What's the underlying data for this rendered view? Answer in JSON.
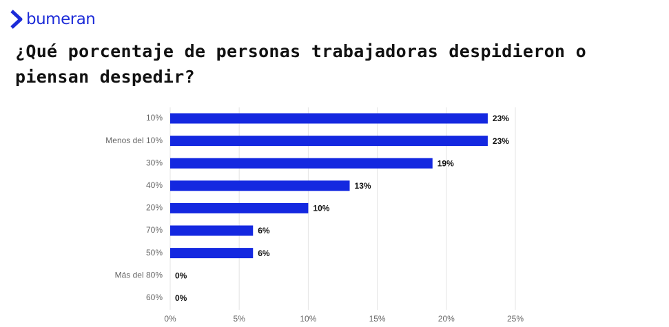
{
  "brand": "bumeran",
  "chart_data": {
    "type": "hbar",
    "title": "¿Qué porcentaje de personas trabajadoras despidieron o piensan despedir?",
    "categories": [
      "10%",
      "Menos del 10%",
      "30%",
      "40%",
      "20%",
      "70%",
      "50%",
      "Más del 80%",
      "60%"
    ],
    "values": [
      23,
      23,
      19,
      13,
      10,
      6,
      6,
      0,
      0
    ],
    "value_labels": [
      "23%",
      "23%",
      "19%",
      "13%",
      "10%",
      "6%",
      "6%",
      "0%",
      "0%"
    ],
    "color": "#1428e0",
    "xlim": [
      0,
      25
    ],
    "xticks": [
      {
        "value": 0,
        "label": "0%"
      },
      {
        "value": 5,
        "label": "5%"
      },
      {
        "value": 10,
        "label": "10%"
      },
      {
        "value": 15,
        "label": "15%"
      },
      {
        "value": 20,
        "label": "20%"
      },
      {
        "value": 25,
        "label": "25%"
      }
    ],
    "grid": true
  }
}
